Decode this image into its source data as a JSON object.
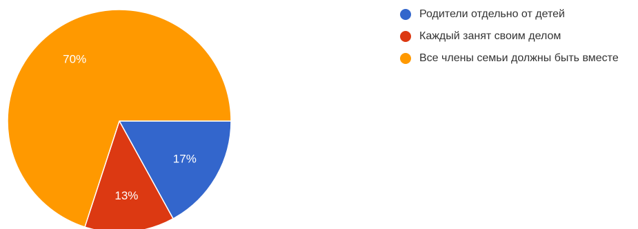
{
  "chart_data": {
    "type": "pie",
    "title": "",
    "start_angle_deg": 90,
    "direction": "clockwise",
    "slices": [
      {
        "label": "Родители отдельно от детей",
        "value": 17,
        "display": "17%",
        "color": "#3366cc"
      },
      {
        "label": "Каждый занят своим делом",
        "value": 13,
        "display": "13%",
        "color": "#dc3912"
      },
      {
        "label": "Все члены семьи должны быть вместе",
        "value": 70,
        "display": "70%",
        "color": "#ff9900"
      }
    ],
    "legend_position": "right"
  }
}
